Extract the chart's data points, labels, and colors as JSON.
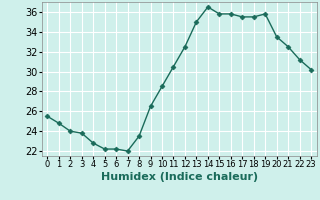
{
  "x": [
    0,
    1,
    2,
    3,
    4,
    5,
    6,
    7,
    8,
    9,
    10,
    11,
    12,
    13,
    14,
    15,
    16,
    17,
    18,
    19,
    20,
    21,
    22,
    23
  ],
  "y": [
    25.5,
    24.8,
    24.0,
    23.8,
    22.8,
    22.2,
    22.2,
    22.0,
    23.5,
    26.5,
    28.5,
    30.5,
    32.5,
    35.0,
    36.5,
    35.8,
    35.8,
    35.5,
    35.5,
    35.8,
    33.5,
    32.5,
    31.2,
    30.2
  ],
  "line_color": "#1a6b5a",
  "marker": "D",
  "marker_size": 2.5,
  "line_width": 1.0,
  "background_color": "#cff0eb",
  "grid_color": "#ffffff",
  "xlabel": "Humidex (Indice chaleur)",
  "xlabel_fontsize": 8,
  "ylim": [
    21.5,
    37.0
  ],
  "xlim": [
    -0.5,
    23.5
  ],
  "yticks": [
    22,
    24,
    26,
    28,
    30,
    32,
    34,
    36
  ],
  "tick_fontsize": 7
}
